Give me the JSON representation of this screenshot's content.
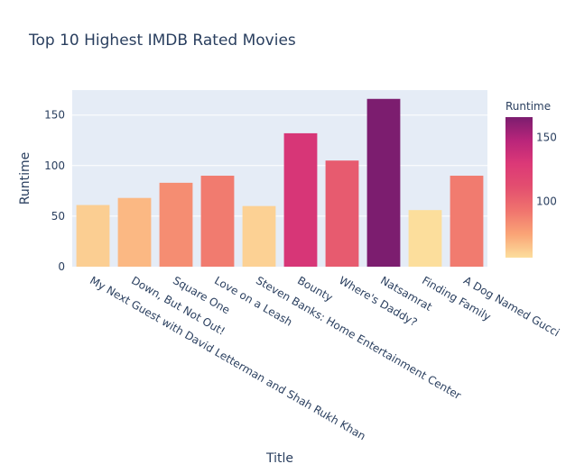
{
  "chart_data": {
    "type": "bar",
    "title": "Top 10 Highest IMDB Rated Movies",
    "xlabel": "Title",
    "ylabel": "Runtime",
    "categories": [
      "My Next Guest with David Letterman and Shah Rukh Khan",
      "Down, But Not Out!",
      "Square One",
      "Love on a Leash",
      "Steven Banks: Home Entertainment Center",
      "Bounty",
      "Where's Daddy?",
      "Natsamrat",
      "Finding Family",
      "A Dog Named Gucci"
    ],
    "values": [
      61,
      68,
      83,
      90,
      60,
      132,
      105,
      166,
      56,
      90
    ],
    "ylim": [
      0,
      174.7
    ],
    "yticks": [
      0,
      50,
      100,
      150
    ],
    "grid": true,
    "colorbar": {
      "title": "Runtime",
      "range": [
        56,
        166
      ],
      "ticks": [
        100,
        150
      ],
      "colorscale": [
        "#fcde9c",
        "#faa476",
        "#f0746e",
        "#e34f6f",
        "#dc3977",
        "#b9257a",
        "#7c1d6f"
      ]
    },
    "colors": {
      "plot_bg": "#e5ecf6",
      "grid": "#ffffff",
      "text": "#2a3f5f"
    }
  }
}
